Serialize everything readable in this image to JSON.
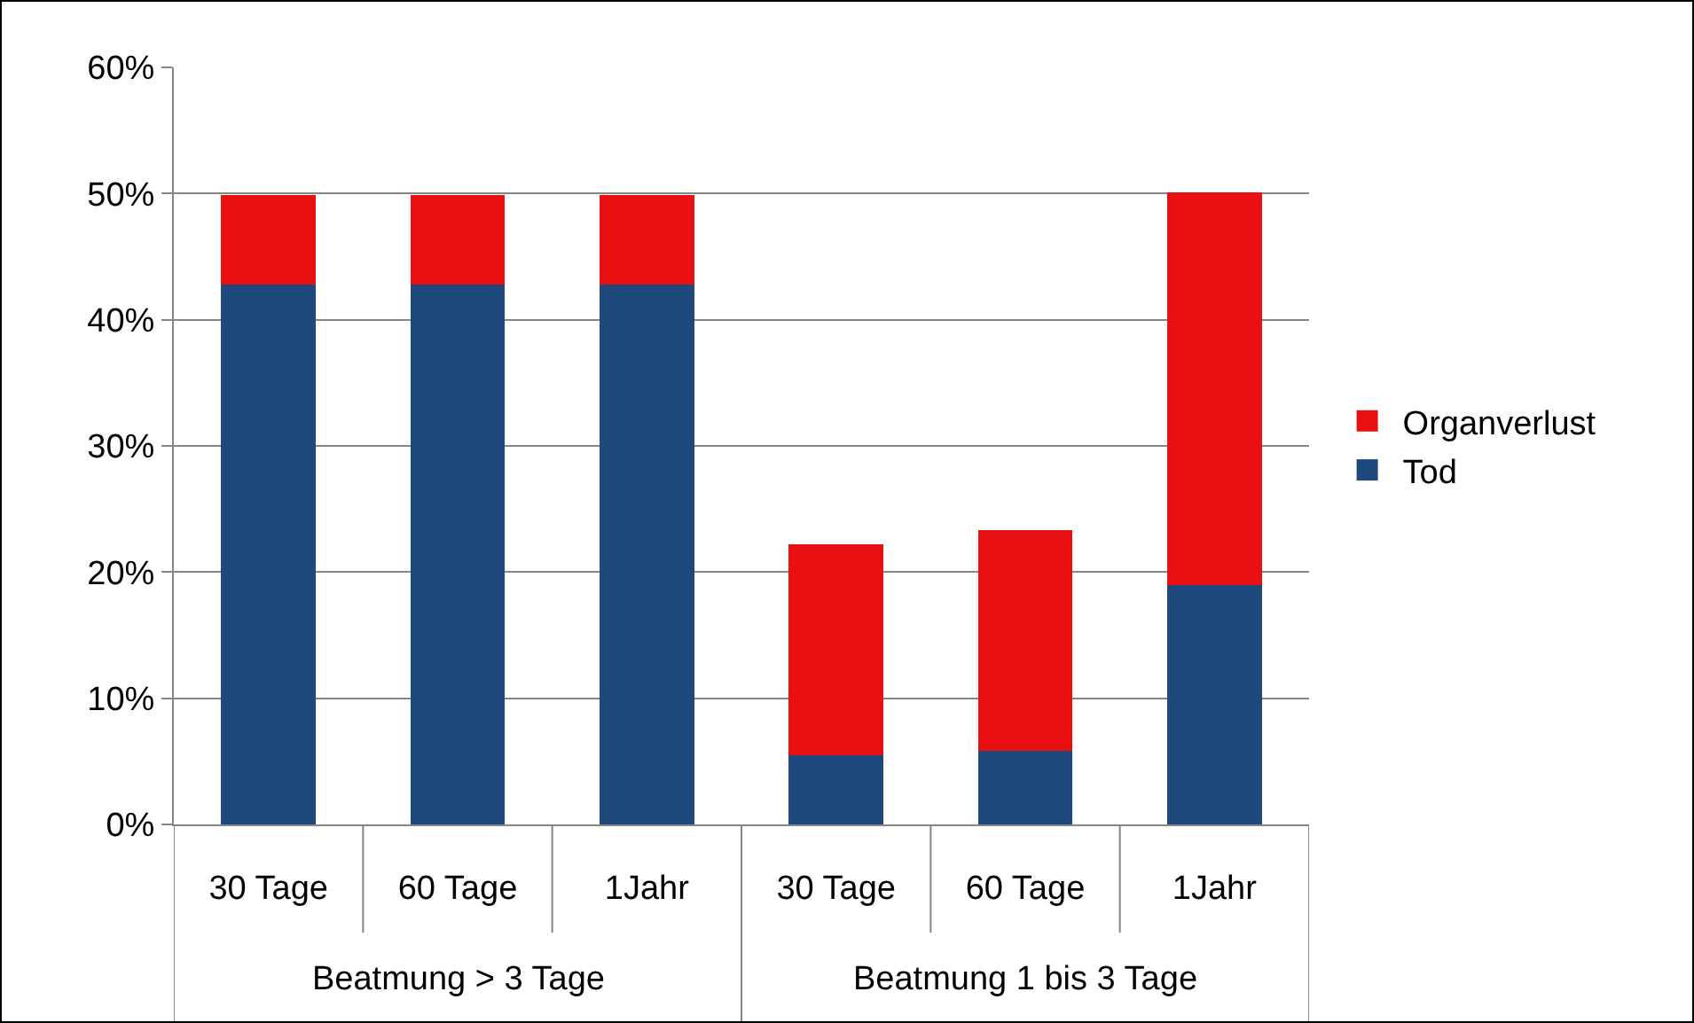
{
  "chart_data": {
    "type": "bar",
    "stacked": true,
    "categories": [
      "30 Tage",
      "60 Tage",
      "1Jahr",
      "30 Tage",
      "60 Tage",
      "1Jahr"
    ],
    "series": [
      {
        "name": "Tod",
        "color": "#1f497d",
        "values": [
          42.8,
          42.8,
          42.8,
          5.5,
          5.8,
          19.0
        ]
      },
      {
        "name": "Organverlust",
        "color": "#e81010",
        "values": [
          7.1,
          7.1,
          7.1,
          16.7,
          17.5,
          31.1
        ]
      }
    ],
    "annotations": [
      "Beatmung > 3 Tage",
      "Beatmung 1 bis 3 Tage"
    ],
    "ylim": [
      0,
      60
    ],
    "yticks": [
      {
        "value": 0,
        "label": "0%"
      },
      {
        "value": 10,
        "label": "10%"
      },
      {
        "value": 20,
        "label": "20%"
      },
      {
        "value": 30,
        "label": "30%"
      },
      {
        "value": 40,
        "label": "40%"
      },
      {
        "value": 50,
        "label": "50%"
      },
      {
        "value": 60,
        "label": "60%"
      }
    ],
    "grid": "y",
    "legend": "right"
  }
}
